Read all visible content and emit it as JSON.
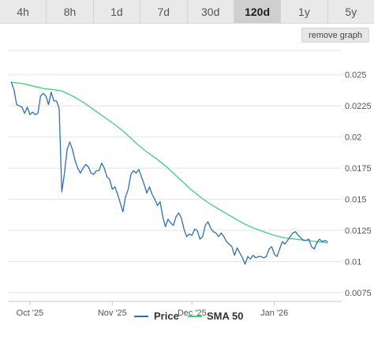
{
  "tabs": [
    {
      "label": "4h",
      "active": false
    },
    {
      "label": "8h",
      "active": false
    },
    {
      "label": "1d",
      "active": false
    },
    {
      "label": "7d",
      "active": false
    },
    {
      "label": "30d",
      "active": false
    },
    {
      "label": "120d",
      "active": true
    },
    {
      "label": "1y",
      "active": false
    },
    {
      "label": "5y",
      "active": false
    }
  ],
  "remove_graph_label": "remove graph",
  "colors": {
    "price": "#2f6fb2",
    "sma": "#3fd17a",
    "grid": "#e4e4e4",
    "axis_text": "#555555"
  },
  "chart_data": {
    "type": "line",
    "title": "",
    "xlabel": "",
    "ylabel": "",
    "x_start": "2025-09-23",
    "x_end": "2026-01-21",
    "x_ticks": [
      {
        "date": "2025-10-01",
        "label": "Oct '25"
      },
      {
        "date": "2025-11-01",
        "label": "Nov '25"
      },
      {
        "date": "2025-12-01",
        "label": "Dec '25"
      },
      {
        "date": "2026-01-01",
        "label": "Jan '26"
      }
    ],
    "ylim": [
      0.0068,
      0.0272
    ],
    "y_ticks": [
      0.0075,
      0.01,
      0.0125,
      0.015,
      0.0175,
      0.02,
      0.0225,
      0.025
    ],
    "y_tick_labels": [
      "0.0075",
      "0.01",
      "0.0125",
      "0.015",
      "0.0175",
      "0.02",
      "0.0225",
      "0.025"
    ],
    "grid": true,
    "legend": "bottom",
    "series": [
      {
        "name": "Price",
        "color": "#2f6fb2",
        "points": [
          [
            "2025-09-24",
            0.0244
          ],
          [
            "2025-09-25",
            0.0238
          ],
          [
            "2025-09-26",
            0.0226
          ],
          [
            "2025-09-27",
            0.0225
          ],
          [
            "2025-09-28",
            0.0224
          ],
          [
            "2025-09-29",
            0.0219
          ],
          [
            "2025-09-30",
            0.0224
          ],
          [
            "2025-10-01",
            0.0218
          ],
          [
            "2025-10-02",
            0.022
          ],
          [
            "2025-10-03",
            0.0218
          ],
          [
            "2025-10-04",
            0.0219
          ],
          [
            "2025-10-05",
            0.0233
          ],
          [
            "2025-10-06",
            0.0235
          ],
          [
            "2025-10-07",
            0.0233
          ],
          [
            "2025-10-08",
            0.0226
          ],
          [
            "2025-10-09",
            0.0236
          ],
          [
            "2025-10-10",
            0.0229
          ],
          [
            "2025-10-11",
            0.0229
          ],
          [
            "2025-10-12",
            0.0223
          ],
          [
            "2025-10-13",
            0.0156
          ],
          [
            "2025-10-14",
            0.0171
          ],
          [
            "2025-10-15",
            0.019
          ],
          [
            "2025-10-16",
            0.0196
          ],
          [
            "2025-10-17",
            0.019
          ],
          [
            "2025-10-18",
            0.0181
          ],
          [
            "2025-10-19",
            0.0175
          ],
          [
            "2025-10-20",
            0.0171
          ],
          [
            "2025-10-21",
            0.0175
          ],
          [
            "2025-10-22",
            0.0178
          ],
          [
            "2025-10-23",
            0.0176
          ],
          [
            "2025-10-24",
            0.0171
          ],
          [
            "2025-10-25",
            0.017
          ],
          [
            "2025-10-26",
            0.0173
          ],
          [
            "2025-10-27",
            0.0173
          ],
          [
            "2025-10-28",
            0.0179
          ],
          [
            "2025-10-29",
            0.0175
          ],
          [
            "2025-10-30",
            0.0168
          ],
          [
            "2025-10-31",
            0.0166
          ],
          [
            "2025-11-01",
            0.0158
          ],
          [
            "2025-11-02",
            0.016
          ],
          [
            "2025-11-03",
            0.0154
          ],
          [
            "2025-11-04",
            0.0147
          ],
          [
            "2025-11-05",
            0.014
          ],
          [
            "2025-11-06",
            0.0152
          ],
          [
            "2025-11-07",
            0.0158
          ],
          [
            "2025-11-08",
            0.017
          ],
          [
            "2025-11-09",
            0.0173
          ],
          [
            "2025-11-10",
            0.0171
          ],
          [
            "2025-11-11",
            0.0174
          ],
          [
            "2025-11-12",
            0.0168
          ],
          [
            "2025-11-13",
            0.0162
          ],
          [
            "2025-11-14",
            0.0155
          ],
          [
            "2025-11-15",
            0.016
          ],
          [
            "2025-11-16",
            0.0154
          ],
          [
            "2025-11-17",
            0.015
          ],
          [
            "2025-11-18",
            0.0145
          ],
          [
            "2025-11-19",
            0.0148
          ],
          [
            "2025-11-20",
            0.0136
          ],
          [
            "2025-11-21",
            0.0128
          ],
          [
            "2025-11-22",
            0.0134
          ],
          [
            "2025-11-23",
            0.0131
          ],
          [
            "2025-11-24",
            0.0129
          ],
          [
            "2025-11-25",
            0.0136
          ],
          [
            "2025-11-26",
            0.0139
          ],
          [
            "2025-11-27",
            0.0135
          ],
          [
            "2025-11-28",
            0.0126
          ],
          [
            "2025-11-29",
            0.012
          ],
          [
            "2025-11-30",
            0.0122
          ],
          [
            "2025-12-01",
            0.0121
          ],
          [
            "2025-12-02",
            0.0126
          ],
          [
            "2025-12-03",
            0.0125
          ],
          [
            "2025-12-04",
            0.0118
          ],
          [
            "2025-12-05",
            0.012
          ],
          [
            "2025-12-06",
            0.0129
          ],
          [
            "2025-12-07",
            0.0132
          ],
          [
            "2025-12-08",
            0.0127
          ],
          [
            "2025-12-09",
            0.0124
          ],
          [
            "2025-12-10",
            0.0123
          ],
          [
            "2025-12-11",
            0.012
          ],
          [
            "2025-12-12",
            0.0123
          ],
          [
            "2025-12-13",
            0.012
          ],
          [
            "2025-12-14",
            0.0116
          ],
          [
            "2025-12-15",
            0.0114
          ],
          [
            "2025-12-16",
            0.0112
          ],
          [
            "2025-12-17",
            0.0105
          ],
          [
            "2025-12-18",
            0.0111
          ],
          [
            "2025-12-19",
            0.0107
          ],
          [
            "2025-12-20",
            0.0103
          ],
          [
            "2025-12-21",
            0.0098
          ],
          [
            "2025-12-22",
            0.0104
          ],
          [
            "2025-12-23",
            0.0102
          ],
          [
            "2025-12-24",
            0.0105
          ],
          [
            "2025-12-25",
            0.0103
          ],
          [
            "2025-12-26",
            0.0104
          ],
          [
            "2025-12-27",
            0.0104
          ],
          [
            "2025-12-28",
            0.0103
          ],
          [
            "2025-12-29",
            0.0104
          ],
          [
            "2025-12-30",
            0.011
          ],
          [
            "2025-12-31",
            0.0112
          ],
          [
            "2026-01-01",
            0.0106
          ],
          [
            "2026-01-02",
            0.0104
          ],
          [
            "2026-01-03",
            0.011
          ],
          [
            "2026-01-04",
            0.0116
          ],
          [
            "2026-01-05",
            0.0114
          ],
          [
            "2026-01-06",
            0.0117
          ],
          [
            "2026-01-07",
            0.012
          ],
          [
            "2026-01-08",
            0.0123
          ],
          [
            "2026-01-09",
            0.0124
          ],
          [
            "2026-01-10",
            0.0121
          ],
          [
            "2026-01-11",
            0.0119
          ],
          [
            "2026-01-12",
            0.0117
          ],
          [
            "2026-01-13",
            0.0117
          ],
          [
            "2026-01-14",
            0.0118
          ],
          [
            "2026-01-15",
            0.0112
          ],
          [
            "2026-01-16",
            0.011
          ],
          [
            "2026-01-17",
            0.0115
          ],
          [
            "2026-01-18",
            0.0118
          ],
          [
            "2026-01-19",
            0.0116
          ],
          [
            "2026-01-20",
            0.0117
          ],
          [
            "2026-01-21",
            0.0116
          ]
        ]
      },
      {
        "name": "SMA 50",
        "color": "#3fd17a",
        "points": [
          [
            "2025-09-24",
            0.0244
          ],
          [
            "2025-09-28",
            0.0243
          ],
          [
            "2025-10-02",
            0.0241
          ],
          [
            "2025-10-06",
            0.0239
          ],
          [
            "2025-10-10",
            0.0238
          ],
          [
            "2025-10-13",
            0.0237
          ],
          [
            "2025-10-17",
            0.0233
          ],
          [
            "2025-10-21",
            0.0228
          ],
          [
            "2025-10-25",
            0.0222
          ],
          [
            "2025-10-29",
            0.0216
          ],
          [
            "2025-11-02",
            0.021
          ],
          [
            "2025-11-06",
            0.0203
          ],
          [
            "2025-11-10",
            0.0195
          ],
          [
            "2025-11-14",
            0.0188
          ],
          [
            "2025-11-18",
            0.0182
          ],
          [
            "2025-11-22",
            0.0175
          ],
          [
            "2025-11-26",
            0.0167
          ],
          [
            "2025-11-30",
            0.0159
          ],
          [
            "2025-12-04",
            0.0152
          ],
          [
            "2025-12-08",
            0.0146
          ],
          [
            "2025-12-12",
            0.0141
          ],
          [
            "2025-12-16",
            0.0136
          ],
          [
            "2025-12-20",
            0.0131
          ],
          [
            "2025-12-24",
            0.0127
          ],
          [
            "2025-12-28",
            0.0124
          ],
          [
            "2026-01-01",
            0.0121
          ],
          [
            "2026-01-05",
            0.0119
          ],
          [
            "2026-01-09",
            0.0118
          ],
          [
            "2026-01-13",
            0.0117
          ],
          [
            "2026-01-17",
            0.0116
          ],
          [
            "2026-01-21",
            0.0115
          ]
        ]
      }
    ]
  }
}
